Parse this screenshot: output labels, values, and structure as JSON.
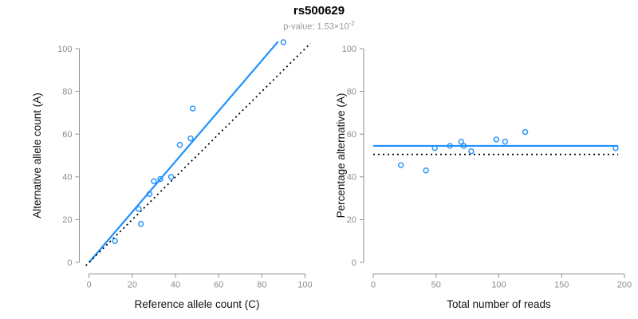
{
  "header": {
    "title": "rs500629",
    "subtitle_prefix": "p-value: 1.53×10",
    "subtitle_exponent": "-2"
  },
  "colors": {
    "accent_blue": "#1E90FF",
    "dotted_line": "#000000",
    "axis_gray": "#8f8f8f",
    "tick_label_gray": "#8c8c8c",
    "axis_title_color": "#111111"
  },
  "chart_data": [
    {
      "type": "scatter",
      "panel": "left",
      "xlabel": "Reference allele count (C)",
      "ylabel": "Alternative allele count (A)",
      "xlim": [
        0,
        100
      ],
      "ylim": [
        0,
        100
      ],
      "xticks": [
        0,
        20,
        40,
        60,
        80,
        100
      ],
      "yticks": [
        0,
        20,
        40,
        60,
        80,
        100
      ],
      "grid": false,
      "marker": "open-circle",
      "points": [
        [
          12,
          10
        ],
        [
          24,
          18
        ],
        [
          23,
          25
        ],
        [
          28,
          32
        ],
        [
          30,
          38
        ],
        [
          33,
          39
        ],
        [
          38,
          40
        ],
        [
          42,
          55
        ],
        [
          47,
          58
        ],
        [
          48,
          72
        ],
        [
          90,
          103
        ]
      ],
      "lines": [
        {
          "name": "regression-line",
          "style": "solid",
          "color": "#1E90FF",
          "x1": 0,
          "y1": 0,
          "x2": 87.5,
          "y2": 103.3
        },
        {
          "name": "identity-line",
          "style": "dotted",
          "color": "#000000",
          "x1": -1.5,
          "y1": -1.5,
          "x2": 102.5,
          "y2": 102.5
        }
      ]
    },
    {
      "type": "scatter",
      "panel": "right",
      "xlabel": "Total number of reads",
      "ylabel": "Percentage alternative (A)",
      "xlim": [
        0,
        200
      ],
      "ylim": [
        0,
        100
      ],
      "xticks": [
        0,
        50,
        100,
        150,
        200
      ],
      "yticks": [
        0,
        20,
        40,
        60,
        80,
        100
      ],
      "grid": false,
      "marker": "open-circle",
      "points": [
        [
          22,
          45.5
        ],
        [
          42,
          43
        ],
        [
          49,
          53.5
        ],
        [
          61,
          54.5
        ],
        [
          70,
          56.5
        ],
        [
          72,
          54.5
        ],
        [
          78,
          52
        ],
        [
          98,
          57.5
        ],
        [
          105,
          56.5
        ],
        [
          121,
          61
        ],
        [
          193,
          53.5
        ]
      ],
      "lines": [
        {
          "name": "mean-percentage-line",
          "style": "solid",
          "color": "#1E90FF",
          "x1": 0,
          "y1": 54.5,
          "x2": 195,
          "y2": 54.5
        },
        {
          "name": "null-50pct-line",
          "style": "dotted",
          "color": "#000000",
          "x1": 0,
          "y1": 50.5,
          "x2": 195,
          "y2": 50.5
        }
      ]
    }
  ]
}
